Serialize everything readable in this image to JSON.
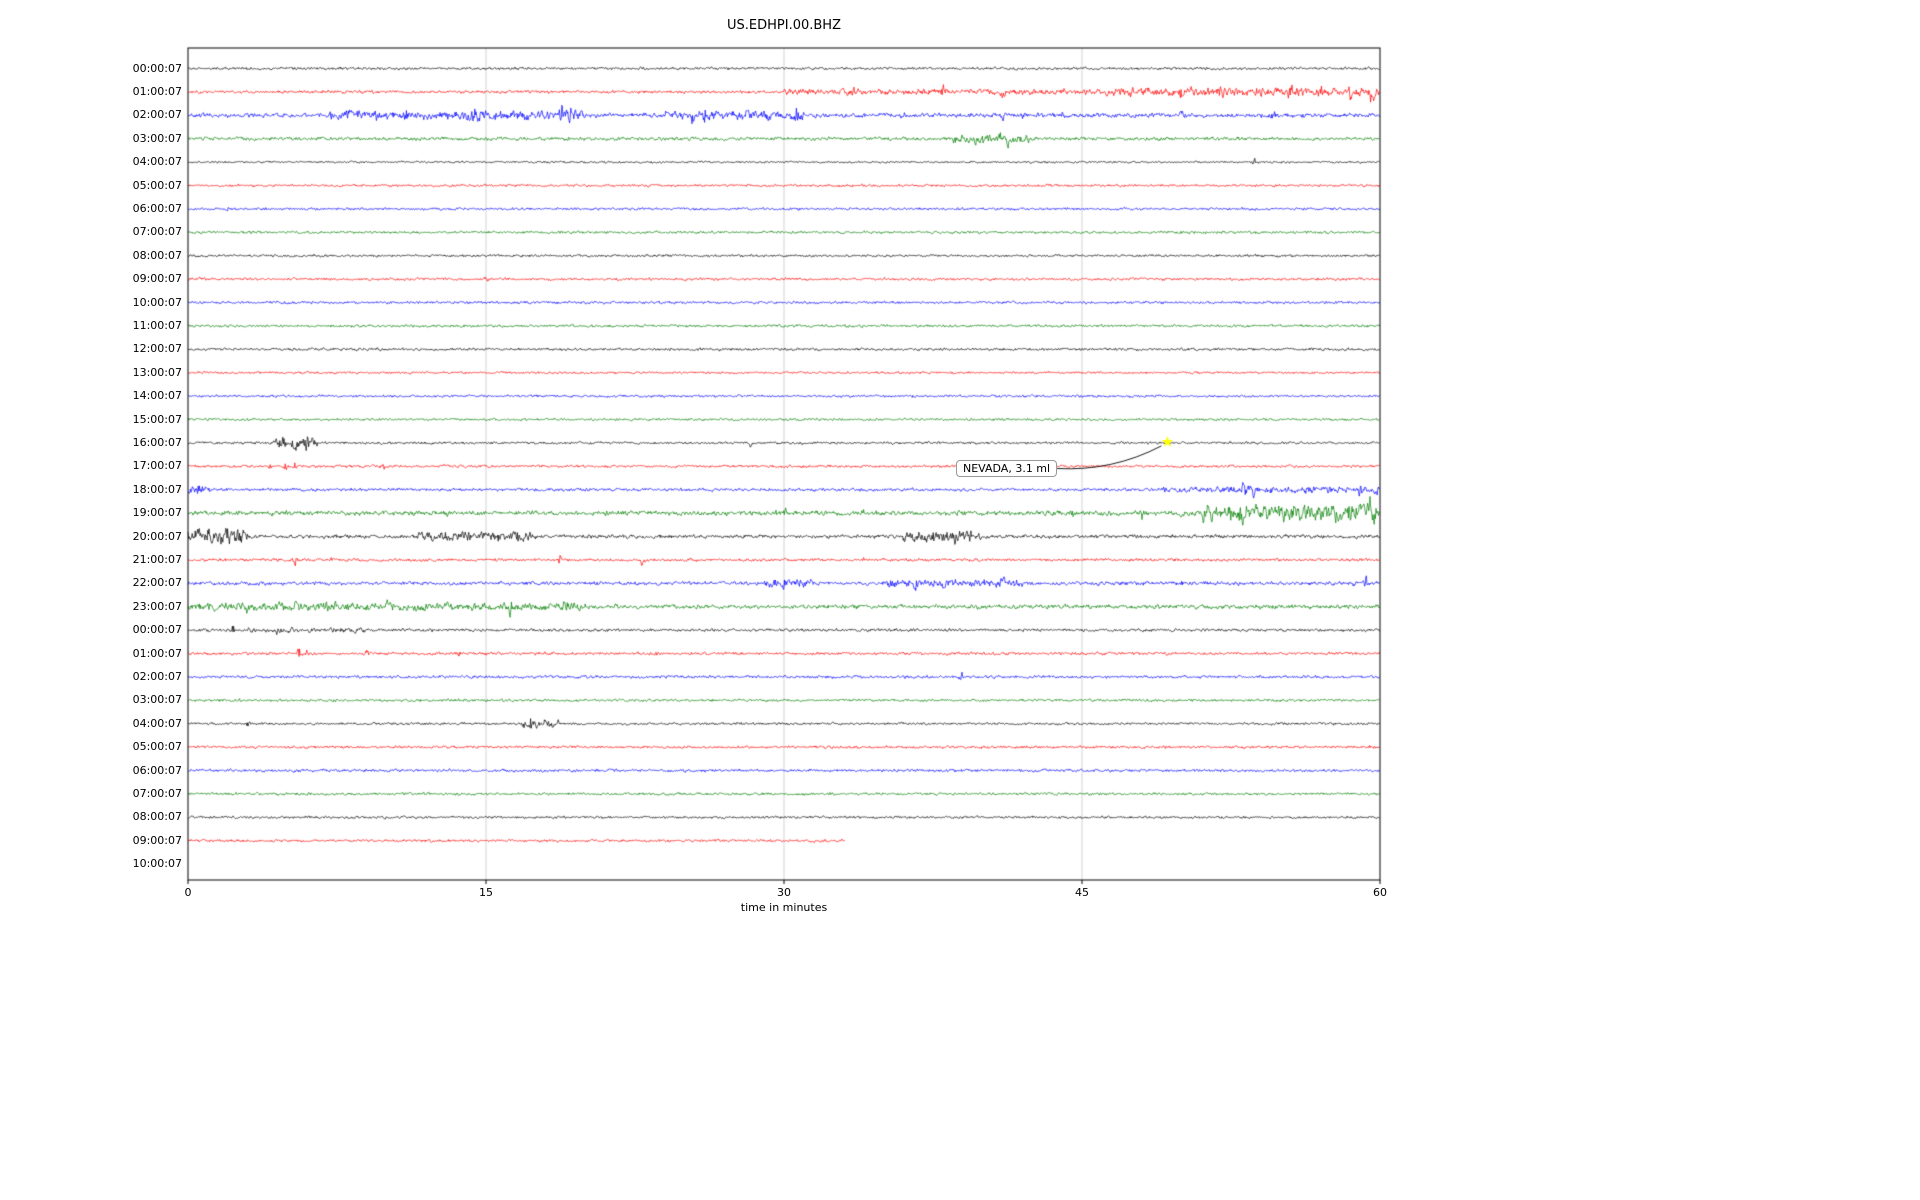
{
  "title": "US.EDHPI.00.BHZ",
  "axis": {
    "xlabel": "time in minutes",
    "xticks": [
      0,
      15,
      30,
      45,
      60
    ],
    "xmin": 0,
    "xmax": 60
  },
  "colors": {
    "black": "#000000",
    "red": "#ff0000",
    "blue": "#0000ff",
    "green": "#008000",
    "grid": "#c8c8c8",
    "marker": "#ffff00"
  },
  "annotation": {
    "label": "NEVADA, 3.1 ml",
    "row": 16,
    "minute": 49.3,
    "marker": "yellow-star-icon",
    "marker_color": "#ffff00"
  },
  "chart_data": {
    "type": "line",
    "kind": "helicorder-dayplot",
    "title": "US.EDHPI.00.BHZ",
    "x_unit": "minutes",
    "x_range": [
      0,
      60
    ],
    "rows": [
      {
        "label": "00:00:07",
        "color": "black",
        "base": 1.4,
        "bursts": [],
        "spikes": []
      },
      {
        "label": "01:00:07",
        "color": "red",
        "base": 1.6,
        "bursts": [
          [
            30,
            46,
            1.3
          ],
          [
            46,
            60,
            2.6
          ]
        ],
        "spikes": [
          [
            33.5,
            3.5
          ],
          [
            38,
            4.5
          ],
          [
            41,
            3.5
          ],
          [
            44,
            3
          ],
          [
            47.5,
            4.5
          ],
          [
            50,
            5.5
          ],
          [
            52,
            4.5
          ],
          [
            54,
            4
          ],
          [
            55.5,
            4.5
          ],
          [
            57,
            5
          ],
          [
            58.5,
            5.5
          ],
          [
            59.6,
            9
          ]
        ]
      },
      {
        "label": "02:00:07",
        "color": "blue",
        "base": 2.2,
        "bursts": [
          [
            7,
            13,
            2.2
          ],
          [
            13,
            20,
            2.8
          ],
          [
            24,
            31,
            2.6
          ]
        ],
        "spikes": [
          [
            8,
            3.5
          ],
          [
            9.5,
            4.5
          ],
          [
            11,
            3.5
          ],
          [
            14.5,
            5.5
          ],
          [
            18.8,
            9.5
          ],
          [
            19.3,
            7
          ],
          [
            25.4,
            7.5
          ],
          [
            26,
            5.5
          ],
          [
            28,
            4.5
          ],
          [
            30.6,
            6.5
          ],
          [
            33,
            4.5
          ],
          [
            36,
            3.5
          ],
          [
            41,
            5.5
          ],
          [
            42,
            4.5
          ],
          [
            44,
            3.5
          ],
          [
            50,
            3.5
          ],
          [
            54.6,
            4.5
          ]
        ]
      },
      {
        "label": "03:00:07",
        "color": "green",
        "base": 1.8,
        "bursts": [
          [
            38.5,
            42.5,
            3.2
          ]
        ],
        "spikes": [
          [
            40,
            4.5
          ],
          [
            40.8,
            5
          ],
          [
            41.3,
            4
          ]
        ]
      },
      {
        "label": "04:00:07",
        "color": "black",
        "base": 1.1,
        "bursts": [],
        "spikes": [
          [
            53.7,
            4.5
          ]
        ]
      },
      {
        "label": "05:00:07",
        "color": "red",
        "base": 1.3,
        "bursts": [],
        "spikes": []
      },
      {
        "label": "06:00:07",
        "color": "blue",
        "base": 1.3,
        "bursts": [],
        "spikes": [
          [
            2,
            1.8
          ]
        ]
      },
      {
        "label": "07:00:07",
        "color": "green",
        "base": 1.4,
        "bursts": [],
        "spikes": []
      },
      {
        "label": "08:00:07",
        "color": "black",
        "base": 1.3,
        "bursts": [],
        "spikes": []
      },
      {
        "label": "09:00:07",
        "color": "red",
        "base": 1.4,
        "bursts": [],
        "spikes": [
          [
            15,
            1.8
          ]
        ]
      },
      {
        "label": "10:00:07",
        "color": "blue",
        "base": 1.4,
        "bursts": [],
        "spikes": [
          [
            5,
            1.8
          ]
        ]
      },
      {
        "label": "11:00:07",
        "color": "green",
        "base": 1.4,
        "bursts": [],
        "spikes": [
          [
            25.5,
            1.8
          ]
        ]
      },
      {
        "label": "12:00:07",
        "color": "black",
        "base": 1.4,
        "bursts": [],
        "spikes": []
      },
      {
        "label": "13:00:07",
        "color": "red",
        "base": 1.2,
        "bursts": [],
        "spikes": []
      },
      {
        "label": "14:00:07",
        "color": "blue",
        "base": 1.3,
        "bursts": [],
        "spikes": []
      },
      {
        "label": "15:00:07",
        "color": "green",
        "base": 1.3,
        "bursts": [],
        "spikes": []
      },
      {
        "label": "16:00:07",
        "color": "black",
        "base": 1.3,
        "bursts": [
          [
            4.3,
            6.5,
            3.5
          ]
        ],
        "spikes": [
          [
            4.8,
            6
          ],
          [
            5.4,
            7.5
          ],
          [
            6,
            5
          ],
          [
            28.3,
            2.8
          ]
        ]
      },
      {
        "label": "17:00:07",
        "color": "red",
        "base": 1.4,
        "bursts": [],
        "spikes": [
          [
            4.1,
            5.5
          ],
          [
            4.9,
            6.5
          ],
          [
            5.4,
            4.5
          ],
          [
            9.9,
            3
          ]
        ]
      },
      {
        "label": "18:00:07",
        "color": "blue",
        "base": 1.6,
        "bursts": [
          [
            0,
            1.2,
            2.6
          ],
          [
            49,
            60,
            1.8
          ]
        ],
        "spikes": [
          [
            0.5,
            4.5
          ],
          [
            53.2,
            12
          ],
          [
            53.6,
            7
          ],
          [
            56.5,
            4.5
          ],
          [
            59,
            5
          ],
          [
            59.8,
            6
          ]
        ]
      },
      {
        "label": "19:00:07",
        "color": "green",
        "base": 2.4,
        "bursts": [
          [
            51,
            60,
            6.5
          ]
        ],
        "spikes": [
          [
            13,
            3.5
          ],
          [
            21,
            3.5
          ],
          [
            27,
            3.5
          ],
          [
            29.6,
            5.5
          ],
          [
            30.1,
            4.5
          ],
          [
            34,
            3.5
          ],
          [
            40,
            3.5
          ],
          [
            44.5,
            4.5
          ],
          [
            48,
            4.5
          ],
          [
            50,
            5
          ],
          [
            53,
            9
          ],
          [
            55,
            8
          ],
          [
            57.5,
            12
          ],
          [
            58.5,
            9
          ],
          [
            59.5,
            10
          ]
        ]
      },
      {
        "label": "20:00:07",
        "color": "black",
        "base": 1.9,
        "bursts": [
          [
            0,
            3,
            5.5
          ],
          [
            11.5,
            17.5,
            3
          ],
          [
            36,
            39.5,
            3.5
          ]
        ],
        "spikes": [
          [
            0.5,
            7
          ],
          [
            1.1,
            8
          ],
          [
            2,
            6
          ],
          [
            13,
            5
          ],
          [
            15.6,
            7
          ],
          [
            16.5,
            5
          ],
          [
            37.5,
            5
          ],
          [
            38.6,
            6
          ],
          [
            39.8,
            7
          ]
        ]
      },
      {
        "label": "21:00:07",
        "color": "red",
        "base": 1.5,
        "bursts": [],
        "spikes": [
          [
            5.4,
            5.5
          ],
          [
            7.2,
            3.5
          ],
          [
            18.7,
            5.5
          ],
          [
            22.9,
            4.5
          ],
          [
            34,
            2.2
          ]
        ]
      },
      {
        "label": "22:00:07",
        "color": "blue",
        "base": 1.9,
        "bursts": [
          [
            29,
            31.5,
            2.2
          ],
          [
            35,
            42,
            2.2
          ]
        ],
        "spikes": [
          [
            30,
            4.5
          ],
          [
            36.6,
            5.5
          ],
          [
            38,
            4.5
          ],
          [
            41,
            3.5
          ],
          [
            50,
            2.6
          ],
          [
            58.6,
            5.5
          ],
          [
            59.3,
            7.5
          ]
        ]
      },
      {
        "label": "23:00:07",
        "color": "green",
        "base": 2.1,
        "bursts": [
          [
            0,
            20,
            2.2
          ]
        ],
        "spikes": [
          [
            3,
            3.5
          ],
          [
            5.5,
            5.5
          ],
          [
            7,
            4.5
          ],
          [
            10,
            5.5
          ],
          [
            12,
            3.5
          ],
          [
            16.2,
            6.5
          ],
          [
            19,
            5.5
          ],
          [
            21.5,
            3.5
          ]
        ]
      },
      {
        "label": "00:00:07",
        "color": "black",
        "base": 1.5,
        "bursts": [
          [
            3,
            9,
            1.1
          ]
        ],
        "spikes": [
          [
            2.3,
            5.5
          ],
          [
            4.5,
            2.6
          ]
        ]
      },
      {
        "label": "01:00:07",
        "color": "red",
        "base": 1.5,
        "bursts": [],
        "spikes": [
          [
            5.6,
            6.5
          ],
          [
            6,
            4.5
          ],
          [
            9,
            3.5
          ],
          [
            13.6,
            4.5
          ],
          [
            23.5,
            2.6
          ]
        ]
      },
      {
        "label": "02:00:07",
        "color": "blue",
        "base": 1.5,
        "bursts": [],
        "spikes": [
          [
            38.9,
            5.5
          ]
        ]
      },
      {
        "label": "03:00:07",
        "color": "green",
        "base": 1.4,
        "bursts": [],
        "spikes": []
      },
      {
        "label": "04:00:07",
        "color": "black",
        "base": 1.3,
        "bursts": [
          [
            16.8,
            18.8,
            3
          ]
        ],
        "spikes": [
          [
            3,
            3.5
          ],
          [
            17.3,
            4.5
          ]
        ]
      },
      {
        "label": "05:00:07",
        "color": "red",
        "base": 1.4,
        "bursts": [],
        "spikes": []
      },
      {
        "label": "06:00:07",
        "color": "blue",
        "base": 1.5,
        "bursts": [],
        "spikes": []
      },
      {
        "label": "07:00:07",
        "color": "green",
        "base": 1.4,
        "bursts": [],
        "spikes": []
      },
      {
        "label": "08:00:07",
        "color": "black",
        "base": 1.3,
        "bursts": [],
        "spikes": []
      },
      {
        "label": "09:00:07",
        "color": "red",
        "base": 1.4,
        "dur": 33.1,
        "bursts": [],
        "spikes": []
      },
      {
        "label": "10:00:07",
        "color": "blue",
        "base": 0,
        "dur": 0,
        "bursts": [],
        "spikes": []
      }
    ]
  }
}
